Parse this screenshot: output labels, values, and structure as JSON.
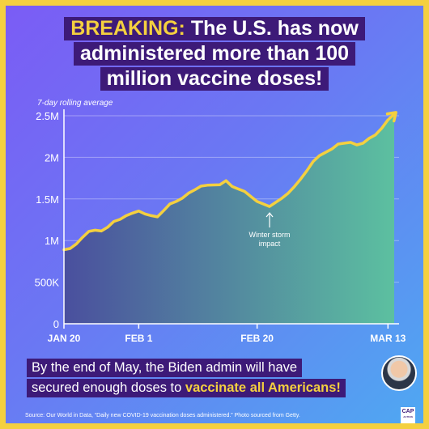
{
  "headline": {
    "breaking": "BREAKING:",
    "line1_rest": " The U.S. has now",
    "line2": "administered more than 100",
    "line3": "million vaccine doses!"
  },
  "chart_data": {
    "type": "area",
    "subtitle": "7-day rolling average",
    "x_tick_labels": [
      "JAN 20",
      "FEB 1",
      "FEB 20",
      "MAR 13"
    ],
    "x_tick_days": [
      0,
      12,
      31,
      52
    ],
    "y_ticks": [
      0,
      500000,
      1000000,
      1500000,
      2000000,
      2500000
    ],
    "y_tick_labels": [
      "0",
      "500K",
      "1M",
      "1.5M",
      "2M",
      "2.5M"
    ],
    "ylim": [
      0,
      2500000
    ],
    "x": [
      "Jan 20",
      "Jan 21",
      "Jan 22",
      "Jan 23",
      "Jan 24",
      "Jan 25",
      "Jan 26",
      "Jan 27",
      "Jan 28",
      "Jan 29",
      "Jan 30",
      "Jan 31",
      "Feb 1",
      "Feb 2",
      "Feb 3",
      "Feb 4",
      "Feb 5",
      "Feb 6",
      "Feb 7",
      "Feb 8",
      "Feb 9",
      "Feb 10",
      "Feb 11",
      "Feb 12",
      "Feb 13",
      "Feb 14",
      "Feb 15",
      "Feb 16",
      "Feb 17",
      "Feb 18",
      "Feb 19",
      "Feb 20",
      "Feb 21",
      "Feb 22",
      "Feb 23",
      "Feb 24",
      "Feb 25",
      "Feb 26",
      "Feb 27",
      "Feb 28",
      "Mar 1",
      "Mar 2",
      "Mar 3",
      "Mar 4",
      "Mar 5",
      "Mar 6",
      "Mar 7",
      "Mar 8",
      "Mar 9",
      "Mar 10",
      "Mar 11",
      "Mar 12",
      "Mar 13",
      "Mar 14"
    ],
    "series": [
      {
        "values": [
          890000,
          905000,
          960000,
          1040000,
          1110000,
          1125000,
          1115000,
          1160000,
          1230000,
          1255000,
          1300000,
          1330000,
          1355000,
          1320000,
          1300000,
          1285000,
          1360000,
          1440000,
          1470000,
          1510000,
          1570000,
          1610000,
          1655000,
          1665000,
          1668000,
          1670000,
          1720000,
          1650000,
          1620000,
          1590000,
          1530000,
          1470000,
          1440000,
          1410000,
          1460000,
          1510000,
          1570000,
          1650000,
          1740000,
          1840000,
          1950000,
          2020000,
          2060000,
          2100000,
          2160000,
          2170000,
          2180000,
          2150000,
          2170000,
          2230000,
          2270000,
          2350000,
          2450000,
          2520000
        ],
        "color": "#f4d03f"
      }
    ],
    "annotation": {
      "text_line1": "Winter storm",
      "text_line2": "impact",
      "at_x": "Feb 22",
      "at_value": 1410000
    }
  },
  "footer": {
    "line1": "By the end of May, the Biden admin will have",
    "line2_plain": "secured enough doses to ",
    "line2_bold": "vaccinate all Americans!"
  },
  "source": "Source: Our World in Data, “Daily new COVID-19 vaccination doses administered.” Photo sourced from Getty.",
  "logo": {
    "main": "CAP",
    "sub": "ACTION"
  },
  "colors": {
    "border": "#f4d03f",
    "headline_bg": "#3d1a78",
    "line": "#f4d03f",
    "area_start": "#4a4f9e",
    "area_end": "#5cc0a0"
  }
}
